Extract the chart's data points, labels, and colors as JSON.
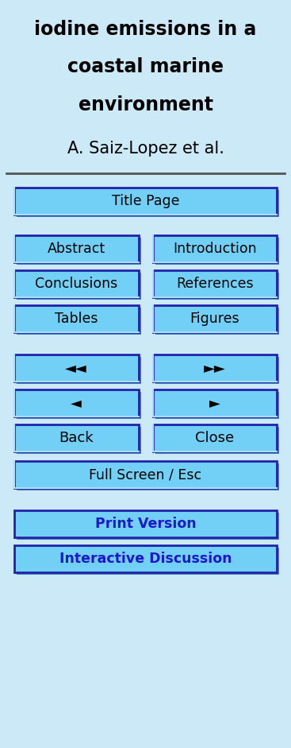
{
  "bg_color": "#cce9f8",
  "title_lines": [
    "iodine emissions in a",
    "coastal marine",
    "environment"
  ],
  "author": "A. Saiz-Lopez et al.",
  "title_fontsize": 17,
  "author_fontsize": 15,
  "button_bg": "#72cff5",
  "button_border_dark": "#2222aa",
  "button_border_light": "#aaddff",
  "button_text_color": "#000000",
  "button_fontsize": 12.5,
  "nav_fontsize": 13,
  "full_width_buttons": [
    "Title Page",
    "Full Screen / Esc"
  ],
  "half_width_buttons": [
    [
      "Abstract",
      "Introduction"
    ],
    [
      "Conclusions",
      "References"
    ],
    [
      "Tables",
      "Figures"
    ],
    [
      "◄◄",
      "►►"
    ],
    [
      "◄",
      "►"
    ],
    [
      "Back",
      "Close"
    ]
  ],
  "bottom_buttons": [
    "Print Version",
    "Interactive Discussion"
  ],
  "bottom_button_text_color": "#1a1acc",
  "figsize": [
    3.67,
    9.41
  ],
  "dpi": 100
}
